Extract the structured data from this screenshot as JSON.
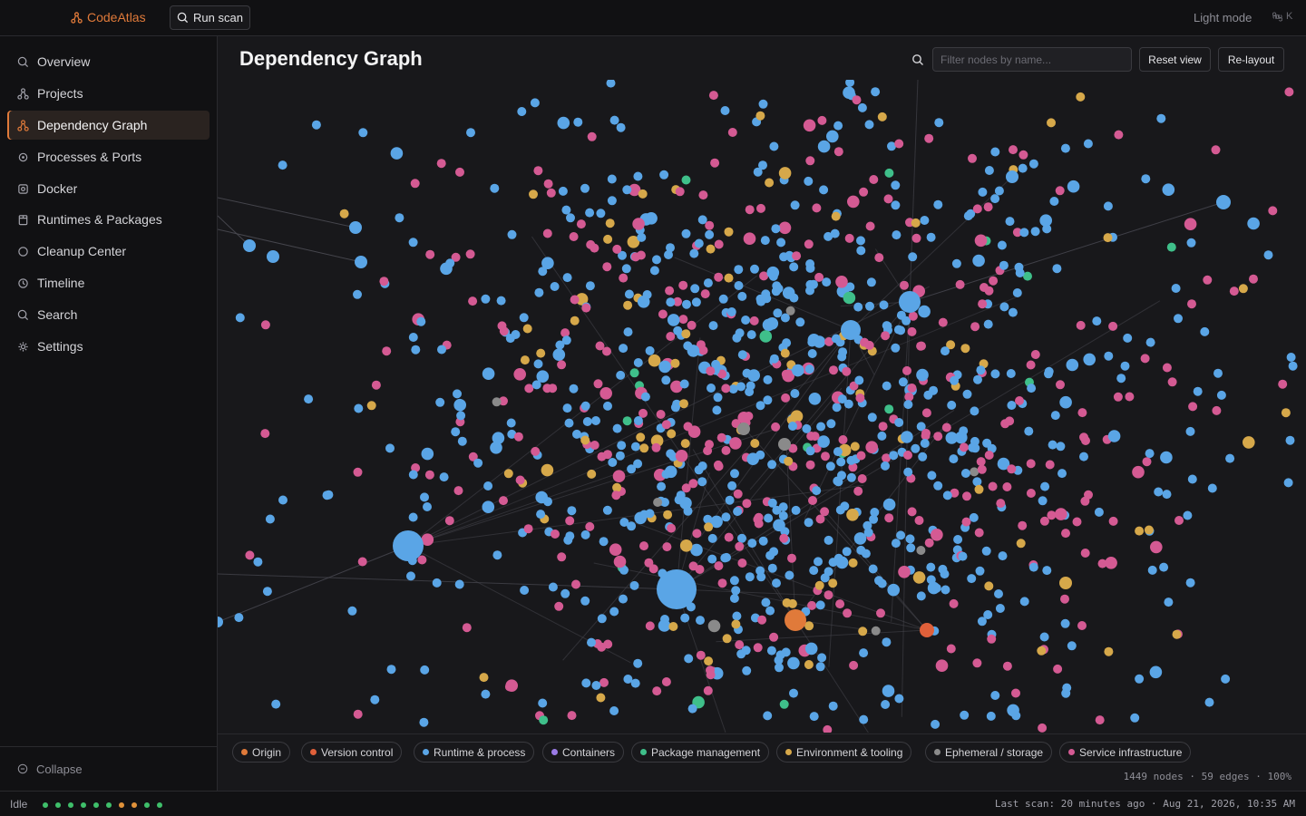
{
  "app": {
    "name": "CodeAtlas",
    "brand_color": "#e07a3a"
  },
  "toolbar": {
    "run_scan_label": "Run scan",
    "light_mode_label": "Light mode",
    "shortcut_key": "K"
  },
  "sidebar": {
    "items": [
      {
        "label": "Overview",
        "icon": "overview-icon",
        "active": false
      },
      {
        "label": "Projects",
        "icon": "projects-icon",
        "active": false
      },
      {
        "label": "Dependency Graph",
        "icon": "graph-icon",
        "active": true
      },
      {
        "label": "Processes & Ports",
        "icon": "process-icon",
        "active": false
      },
      {
        "label": "Docker",
        "icon": "docker-icon",
        "active": false
      },
      {
        "label": "Runtimes & Packages",
        "icon": "package-icon",
        "active": false
      },
      {
        "label": "Cleanup Center",
        "icon": "cleanup-icon",
        "active": false
      },
      {
        "label": "Timeline",
        "icon": "clock-icon",
        "active": false
      },
      {
        "label": "Search",
        "icon": "search-icon",
        "active": false
      },
      {
        "label": "Settings",
        "icon": "gear-icon",
        "active": false
      }
    ],
    "collapse_label": "Collapse"
  },
  "main": {
    "title": "Dependency Graph",
    "filter_placeholder": "Filter nodes by name...",
    "reset_label": "Reset view",
    "relayout_label": "Re-layout"
  },
  "legend": [
    {
      "label": "Origin",
      "color": "#e07a3a"
    },
    {
      "label": "Version control",
      "color": "#e0603a"
    },
    {
      "label": "Runtime & process",
      "color": "#5aa5e6"
    },
    {
      "label": "Containers",
      "color": "#9b7be6"
    },
    {
      "label": "Package management",
      "color": "#3fbf8a"
    },
    {
      "label": "Environment & tooling",
      "color": "#d6a84a"
    },
    {
      "label": "Ephemeral / storage",
      "color": "#8a8a8a"
    },
    {
      "label": "Service infrastructure",
      "color": "#d45a93"
    }
  ],
  "stats": {
    "text": "1449 nodes · 59 edges · 100%"
  },
  "status": {
    "idle_label": "Idle",
    "indicator_colors": [
      "#3fbf6a",
      "#3fbf6a",
      "#3fbf6a",
      "#3fbf6a",
      "#3fbf6a",
      "#3fbf6a",
      "#e0923a",
      "#e0923a",
      "#3fbf6a",
      "#3fbf6a"
    ],
    "last_scan": "Last scan: 20 minutes ago · Aug 21, 2026, 10:35 AM"
  }
}
